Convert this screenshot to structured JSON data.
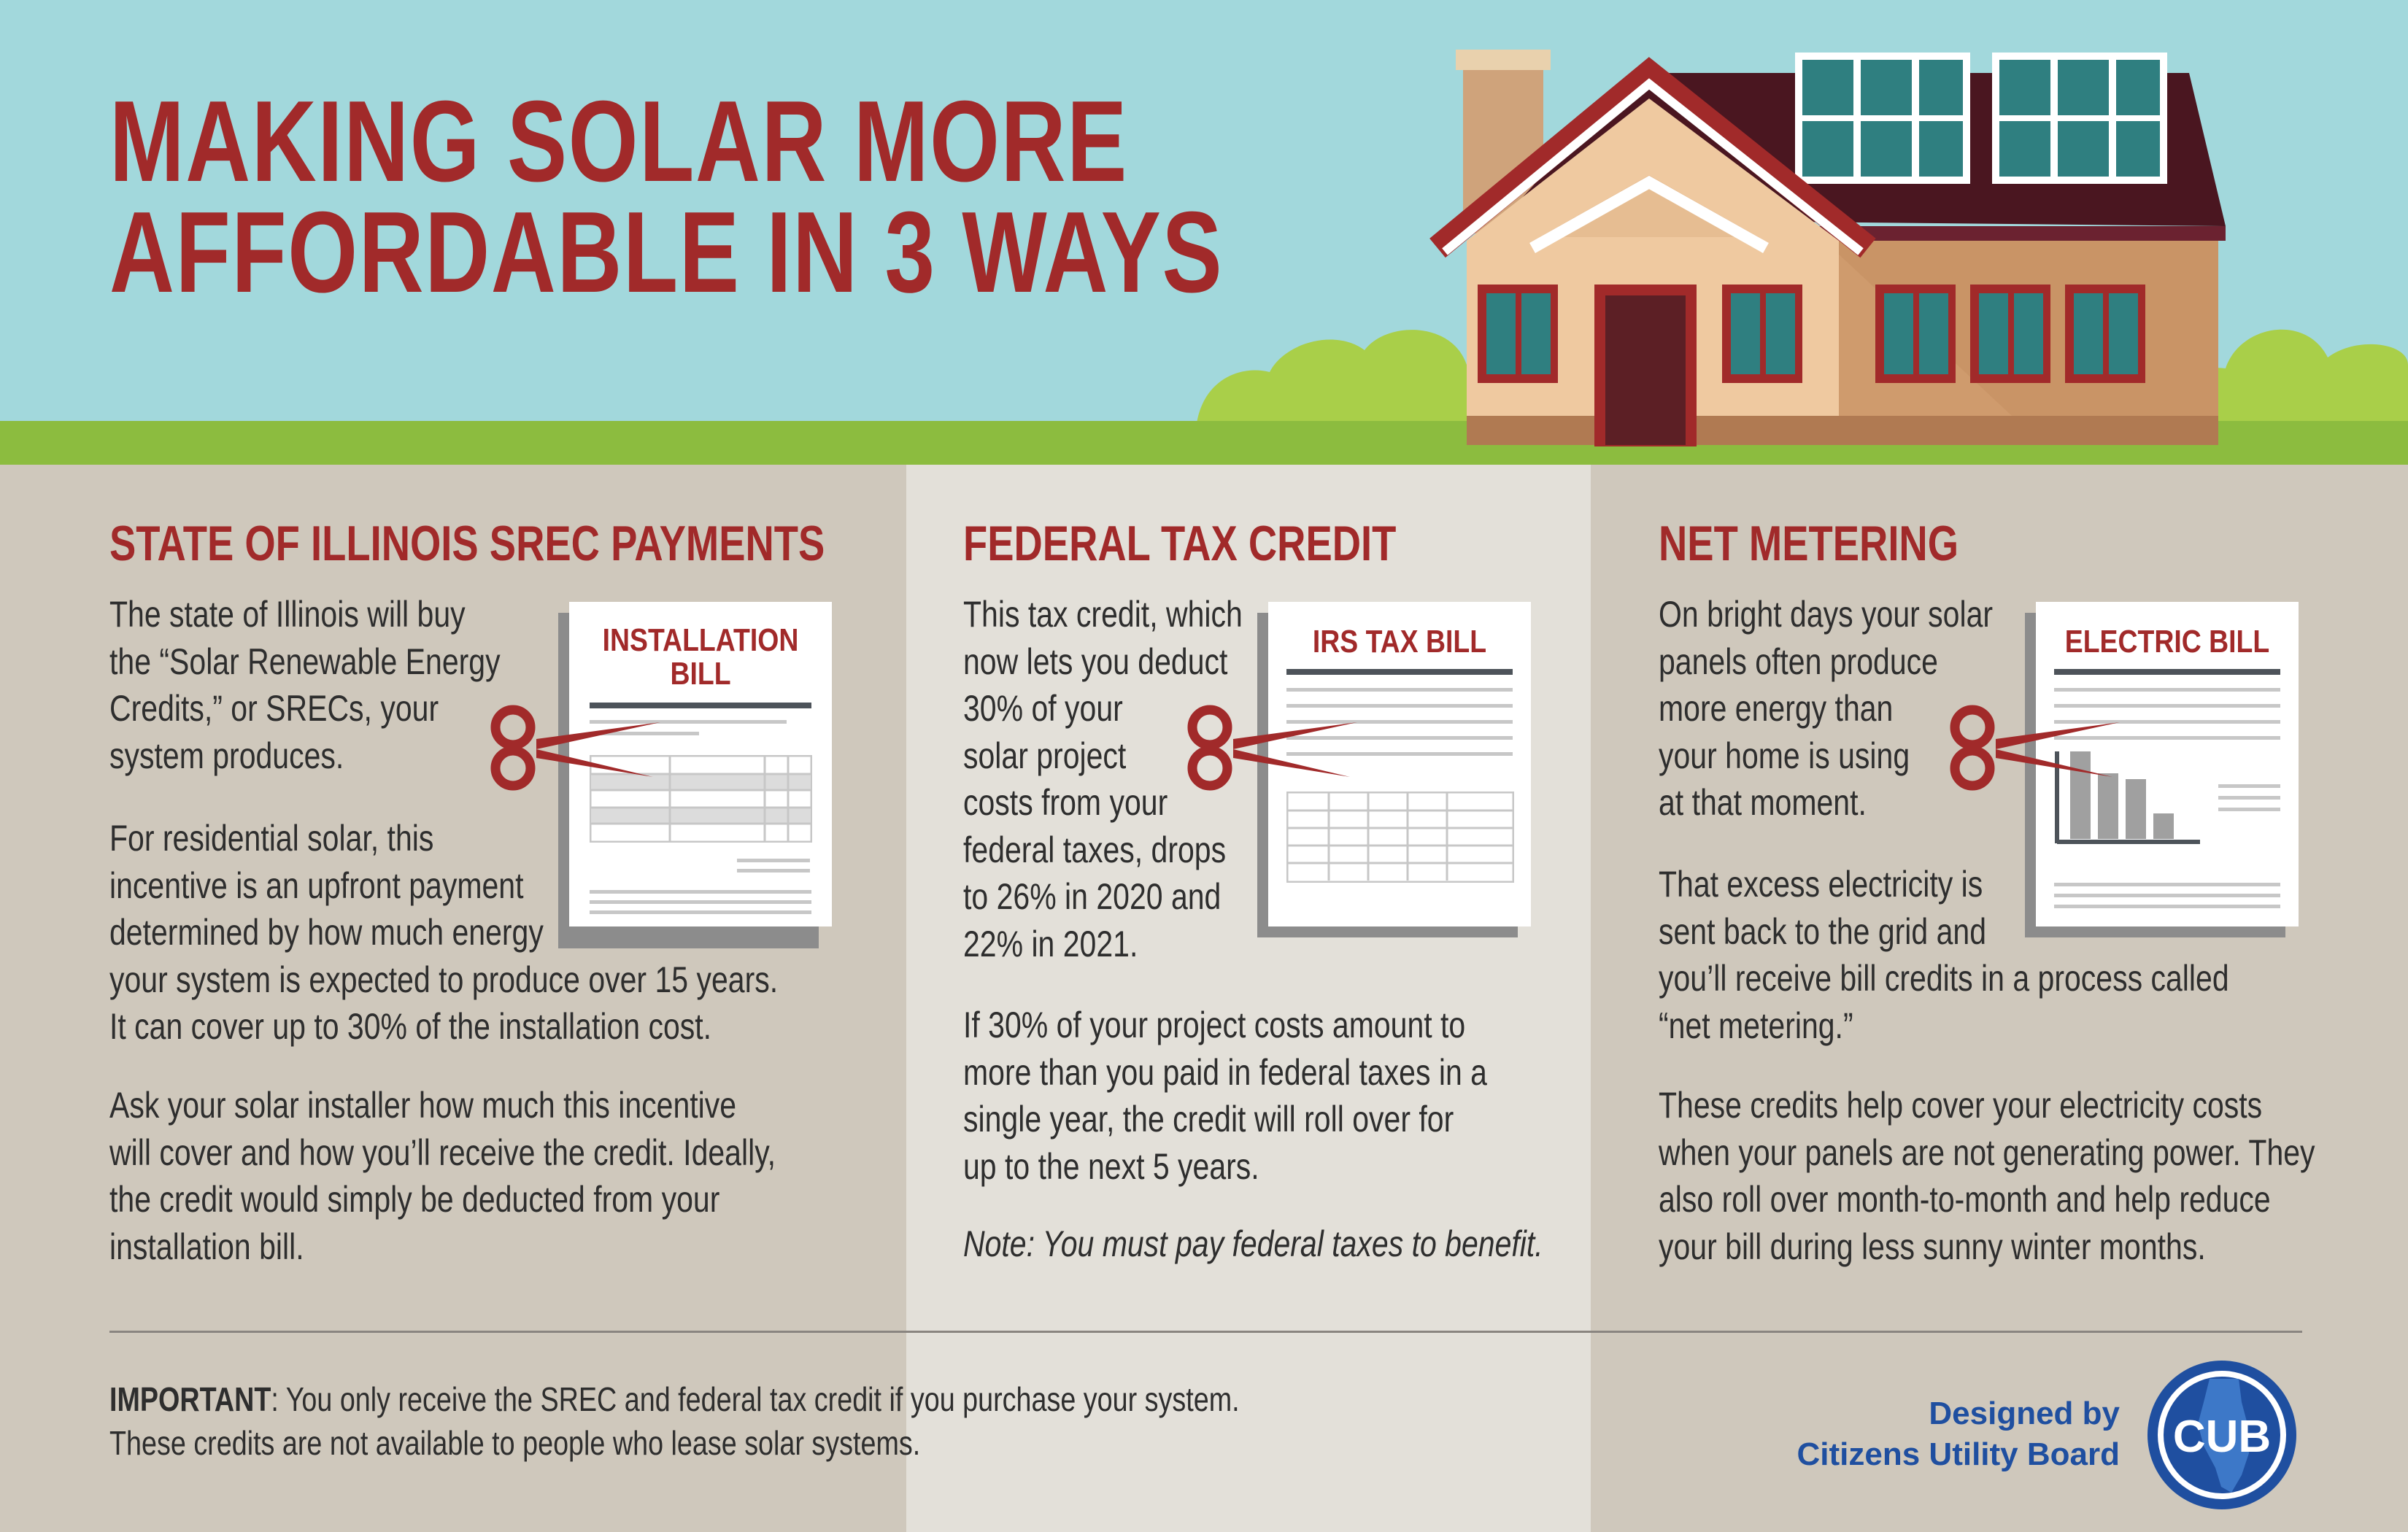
{
  "header": {
    "title_line1": "MAKING SOLAR MORE",
    "title_line2": "AFFORDABLE IN 3 WAYS"
  },
  "sections": [
    {
      "heading": "STATE OF ILLINOIS SREC PAYMENTS",
      "document_title_line1": "INSTALLATION",
      "document_title_line2": "BILL",
      "paragraphs": [
        [
          "The state of Illinois will buy",
          "the “Solar Renewable Energy",
          "Credits,” or SRECs, your",
          "system produces."
        ],
        [
          "For residential solar, this",
          "incentive is an upfront payment",
          "determined by how much energy",
          "your system is expected to produce over 15 years.",
          "It can cover up to 30% of the installation cost."
        ],
        [
          "Ask your solar installer how much this incentive",
          "will cover and how you’ll receive the credit. Ideally,",
          "the credit would simply be deducted from your",
          "installation bill."
        ]
      ]
    },
    {
      "heading": "FEDERAL TAX CREDIT",
      "document_title": "IRS TAX BILL",
      "paragraphs": [
        [
          "This tax credit, which",
          "now lets you deduct",
          "30% of your",
          "solar project",
          "costs from your",
          "federal taxes, drops",
          "to 26% in 2020 and",
          "22% in 2021."
        ],
        [
          "If 30% of your project costs amount to",
          "more than you paid in federal taxes in a",
          "single year, the credit will roll over for",
          "up to the next 5 years."
        ]
      ],
      "note": "Note: You must pay federal taxes to benefit."
    },
    {
      "heading": "NET METERING",
      "document_title": "ELECTRIC BILL",
      "paragraphs": [
        [
          "On bright days your solar",
          "panels often produce",
          "more energy than",
          "your home is using",
          "at that moment."
        ],
        [
          "That excess electricity is",
          "sent back to the grid and",
          "you’ll receive bill credits in a process called",
          "“net metering.”"
        ],
        [
          "These credits help cover your electricity costs",
          "when your panels are not generating power. They",
          "also roll over month-to-month and help reduce",
          "your bill during less sunny winter months."
        ]
      ]
    }
  ],
  "footer": {
    "important_label": "IMPORTANT",
    "important_line1": ": You only receive the SREC and federal tax credit if you purchase your system.",
    "important_line2": "These credits are not available to people who lease solar systems.",
    "designed_line1": "Designed by",
    "designed_line2": "Citizens Utility Board",
    "logo_text": "CUB"
  },
  "colors": {
    "title_red": "#a12a2a",
    "sky": "#a2d8dc",
    "grass": "#8cbc3f",
    "cub_blue": "#1f4fa0"
  },
  "icons": [
    "scissors-icon",
    "house-illustration",
    "bar-chart-icon",
    "illinois-state-icon"
  ]
}
